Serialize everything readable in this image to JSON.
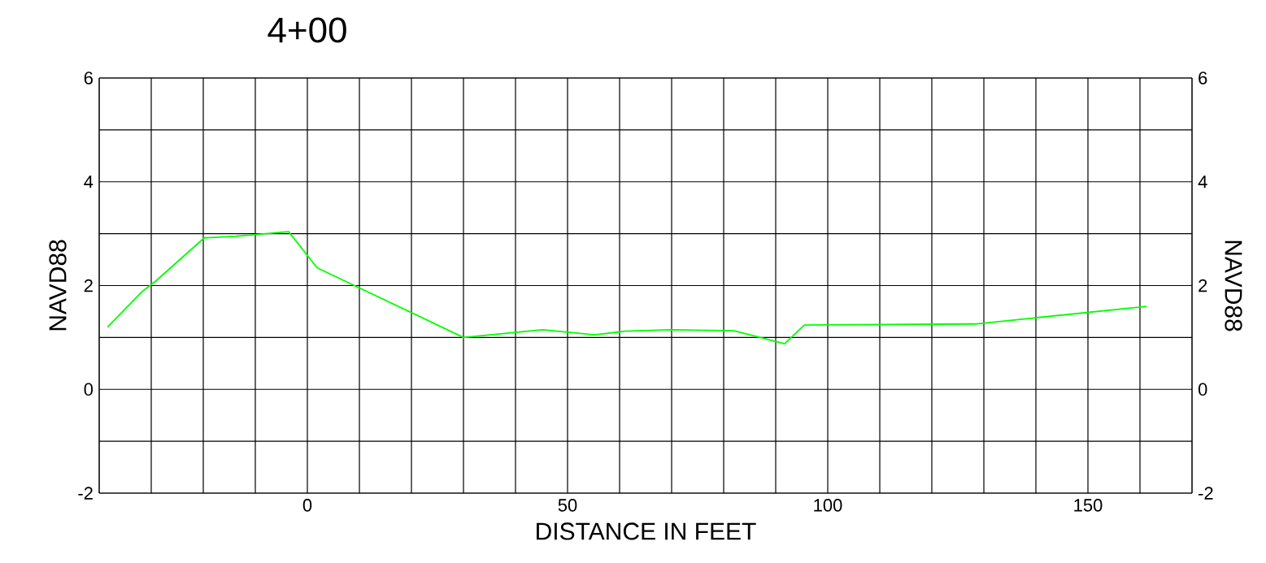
{
  "chart_data": {
    "type": "line",
    "title": "4+00",
    "xlabel": "DISTANCE IN FEET",
    "ylabel": "NAVD88",
    "y2label": "NAVD88",
    "x": [
      -38.4,
      -31.9,
      -29.1,
      -19.8,
      -13.8,
      -3.6,
      1.9,
      30,
      45.2,
      55.2,
      61,
      69.8,
      82,
      91.7,
      95.5,
      128.3,
      161.3
    ],
    "series": [
      {
        "color": "#00ff00",
        "values": [
          1.2,
          1.87,
          2.09,
          2.92,
          2.95,
          3.04,
          2.34,
          1.0,
          1.15,
          1.05,
          1.12,
          1.15,
          1.13,
          0.88,
          1.24,
          1.26,
          1.6
        ]
      }
    ],
    "xlim": [
      -40,
      170
    ],
    "xticks": [
      {
        "value": -40,
        "label": null
      },
      {
        "value": -30,
        "label": null
      },
      {
        "value": -20,
        "label": null
      },
      {
        "value": -10,
        "label": null
      },
      0,
      {
        "value": 10,
        "label": null
      },
      {
        "value": 20,
        "label": null
      },
      {
        "value": 30,
        "label": null
      },
      {
        "value": 40,
        "label": null
      },
      50,
      {
        "value": 60,
        "label": null
      },
      {
        "value": 70,
        "label": null
      },
      {
        "value": 80,
        "label": null
      },
      {
        "value": 90,
        "label": null
      },
      100,
      {
        "value": 110,
        "label": null
      },
      {
        "value": 120,
        "label": null
      },
      {
        "value": 130,
        "label": null
      },
      {
        "value": 140,
        "label": null
      },
      150,
      {
        "value": 160,
        "label": null
      },
      {
        "value": 170,
        "label": null
      }
    ],
    "ylim": [
      -2,
      6
    ],
    "yticks": [
      -2,
      {
        "value": -1,
        "label": null
      },
      0,
      {
        "value": 1,
        "label": null
      },
      2,
      {
        "value": 3,
        "label": null
      },
      4,
      {
        "value": 5,
        "label": null
      },
      6
    ],
    "y2lim": [
      -2,
      6
    ],
    "y2ticks": [
      -2,
      0,
      2,
      4,
      6
    ],
    "grid": true,
    "marker": "none",
    "line_style": "solid"
  }
}
